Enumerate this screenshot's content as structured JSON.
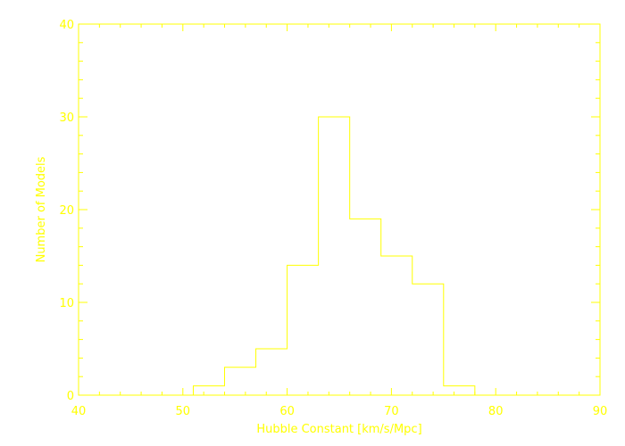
{
  "colors": {
    "plot": "#ffff00",
    "background": "#ffffff"
  },
  "chart_data": {
    "type": "histogram",
    "title": "",
    "xlabel": "Hubble Constant [km/s/Mpc]",
    "ylabel": "Number of Models",
    "xlim": [
      40,
      90
    ],
    "ylim": [
      0,
      40
    ],
    "x_ticks": [
      40,
      50,
      60,
      70,
      80,
      90
    ],
    "y_ticks": [
      0,
      10,
      20,
      30,
      40
    ],
    "x_tick_labels": [
      "40",
      "50",
      "60",
      "70",
      "80",
      "90"
    ],
    "y_tick_labels": [
      "0",
      "10",
      "20",
      "30",
      "40"
    ],
    "bin_edges": [
      51,
      54,
      57,
      60,
      63,
      66,
      69,
      72,
      75,
      78
    ],
    "counts": [
      1,
      3,
      5,
      14,
      30,
      19,
      15,
      12,
      1
    ],
    "grid": false
  }
}
